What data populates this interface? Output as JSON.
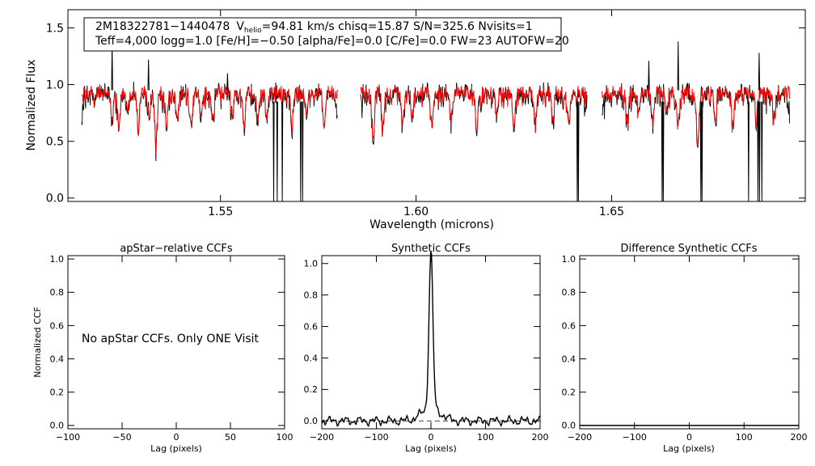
{
  "chart_data": [
    {
      "id": "spectrum",
      "type": "line",
      "header": {
        "line1_name": "2M18322781−1440478",
        "vhelio_prefix": "V",
        "vhelio_sub": "helio",
        "vhelio_rest": "=94.81 km/s  chisq=15.87  S/N=325.6  Nvisits=1",
        "line2": "Teff=4,000 logg=1.0 [Fe/H]=−0.50 [alpha/Fe]=0.0 [C/Fe]=0.0 FW=23 AUTOFW=20"
      },
      "xlabel": "Wavelength (microns)",
      "ylabel": "Normalized Flux",
      "xlim": [
        1.511,
        1.6995
      ],
      "ylim": [
        -0.03,
        1.66
      ],
      "xticks": [
        1.55,
        1.6,
        1.65
      ],
      "xtick_labels": [
        "1.55",
        "1.60",
        "1.65"
      ],
      "yticks": [
        0.0,
        0.5,
        1.0,
        1.5
      ],
      "ytick_labels": [
        "0.0",
        "0.5",
        "1.0",
        "1.5"
      ],
      "chips": [
        [
          1.5145,
          1.58
        ],
        [
          1.5858,
          1.6437
        ],
        [
          1.6475,
          1.6955
        ]
      ],
      "series": [
        {
          "name": "observed",
          "color": "#000000"
        },
        {
          "name": "model",
          "color": "#ff0000"
        }
      ],
      "features": [
        {
          "wl": 1.5222,
          "depth": 0.2
        },
        {
          "wl": 1.524,
          "depth": 0.28
        },
        {
          "wl": 1.5262,
          "depth": 0.18
        },
        {
          "wl": 1.529,
          "depth": 0.33
        },
        {
          "wl": 1.5318,
          "depth": 0.22
        },
        {
          "wl": 1.5335,
          "depth": 0.45
        },
        {
          "wl": 1.5362,
          "depth": 0.3
        },
        {
          "wl": 1.539,
          "depth": 0.25
        },
        {
          "wl": 1.5425,
          "depth": 0.3
        },
        {
          "wl": 1.545,
          "depth": 0.22
        },
        {
          "wl": 1.548,
          "depth": 0.25
        },
        {
          "wl": 1.553,
          "depth": 0.18
        },
        {
          "wl": 1.556,
          "depth": 0.3
        },
        {
          "wl": 1.5595,
          "depth": 0.25
        },
        {
          "wl": 1.5618,
          "depth": 0.25
        },
        {
          "wl": 1.5682,
          "depth": 0.32
        },
        {
          "wl": 1.572,
          "depth": 0.22
        },
        {
          "wl": 1.5765,
          "depth": 0.28
        },
        {
          "wl": 1.589,
          "depth": 0.4
        },
        {
          "wl": 1.5915,
          "depth": 0.3
        },
        {
          "wl": 1.5965,
          "depth": 0.28
        },
        {
          "wl": 1.599,
          "depth": 0.2
        },
        {
          "wl": 1.604,
          "depth": 0.28
        },
        {
          "wl": 1.609,
          "depth": 0.25
        },
        {
          "wl": 1.6155,
          "depth": 0.3
        },
        {
          "wl": 1.6205,
          "depth": 0.22
        },
        {
          "wl": 1.625,
          "depth": 0.28
        },
        {
          "wl": 1.6305,
          "depth": 0.25
        },
        {
          "wl": 1.635,
          "depth": 0.25
        },
        {
          "wl": 1.639,
          "depth": 0.3
        },
        {
          "wl": 1.654,
          "depth": 0.25
        },
        {
          "wl": 1.657,
          "depth": 0.2
        },
        {
          "wl": 1.6605,
          "depth": 0.3
        },
        {
          "wl": 1.664,
          "depth": 0.22
        },
        {
          "wl": 1.667,
          "depth": 0.28
        },
        {
          "wl": 1.672,
          "depth": 0.45
        },
        {
          "wl": 1.6765,
          "depth": 0.22
        },
        {
          "wl": 1.681,
          "depth": 0.28
        },
        {
          "wl": 1.687,
          "depth": 0.22
        },
        {
          "wl": 1.6915,
          "depth": 0.25
        }
      ],
      "drops": [
        1.5636,
        1.5645,
        1.5658,
        1.5705,
        1.571,
        1.6412,
        1.6415,
        1.6629,
        1.6632,
        1.6728,
        1.6731,
        1.685,
        1.6874,
        1.6878,
        1.6884
      ],
      "spikes": [
        [
          1.5223,
          1.36
        ],
        [
          1.5316,
          1.22
        ],
        [
          1.5518,
          1.1
        ],
        [
          1.667,
          1.38
        ],
        [
          1.6595,
          1.21
        ],
        [
          1.6877,
          1.28
        ]
      ]
    },
    {
      "id": "apstar",
      "type": "line",
      "title": "apStar−relative CCFs",
      "xlabel": "Lag (pixels)",
      "ylabel": "Normalized CCF",
      "xlim": [
        -100,
        100
      ],
      "ylim": [
        -0.02,
        1.02
      ],
      "xticks": [
        -100,
        -50,
        0,
        50,
        100
      ],
      "xtick_labels": [
        "−100",
        "−50",
        "0",
        "50",
        "100"
      ],
      "yticks": [
        0.0,
        0.2,
        0.4,
        0.6,
        0.8,
        1.0
      ],
      "ytick_labels": [
        "0.0",
        "0.2",
        "0.4",
        "0.6",
        "0.8",
        "1.0"
      ],
      "message": "No apStar CCFs.  Only ONE Visit"
    },
    {
      "id": "synthetic",
      "type": "line",
      "title": "Synthetic CCFs",
      "xlabel": "Lag (pixels)",
      "xlim": [
        -200,
        200
      ],
      "ylim": [
        -0.05,
        1.05
      ],
      "xticks": [
        -200,
        -100,
        0,
        100,
        200
      ],
      "xtick_labels": [
        "−200",
        "−100",
        "0",
        "100",
        "200"
      ],
      "yticks": [
        0.0,
        0.2,
        0.4,
        0.6,
        0.8,
        1.0
      ],
      "ytick_labels": [
        "0.0",
        "0.2",
        "0.4",
        "0.6",
        "0.8",
        "1.0"
      ],
      "peak": {
        "lag": 0,
        "value": 1.0,
        "width": 5
      },
      "wing": {
        "amplitude": 0.08,
        "width": 25
      },
      "baseline": 0.0
    },
    {
      "id": "difference",
      "type": "line",
      "title": "Difference Synthetic CCFs",
      "xlabel": "Lag (pixels)",
      "xlim": [
        -200,
        200
      ],
      "ylim": [
        -0.02,
        1.02
      ],
      "xticks": [
        -200,
        -100,
        0,
        100,
        200
      ],
      "xtick_labels": [
        "−200",
        "−100",
        "0",
        "100",
        "200"
      ],
      "yticks": [
        0.0,
        0.2,
        0.4,
        0.6,
        0.8,
        1.0
      ],
      "ytick_labels": [
        "0.0",
        "0.2",
        "0.4",
        "0.6",
        "0.8",
        "1.0"
      ],
      "baseline": 0.0
    }
  ]
}
